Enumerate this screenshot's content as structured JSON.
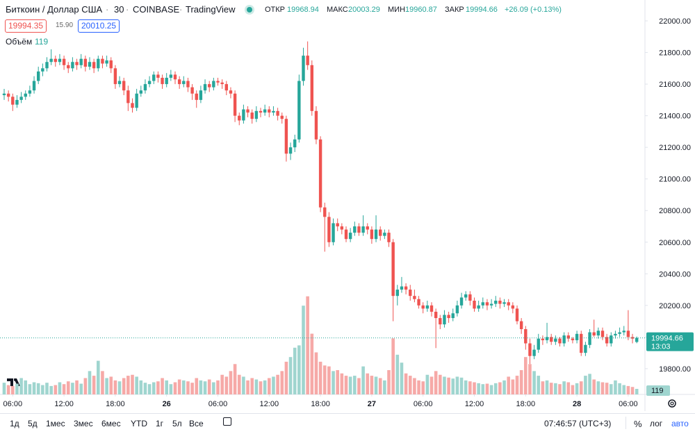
{
  "header": {
    "symbol": "Биткоин / Доллар США",
    "interval": "30",
    "exchange": "COINBASE",
    "source": "TradingView",
    "open_label": "ОТКР",
    "high_label": "МАКС",
    "low_label": "МИН",
    "close_label": "ЗАКР",
    "change": "+26.09 (+0.13%)",
    "bid": "19994.35",
    "spread": "15.90",
    "ask": "20010.25",
    "countdown": "13:03"
  },
  "toolbar": {
    "ranges": [
      "1д",
      "5д",
      "1мес",
      "3мес",
      "6мес",
      "YTD",
      "1г",
      "5л",
      "Все"
    ],
    "clock": "07:46:57 (UTC+3)",
    "percent": "%",
    "log": "лог",
    "auto": "авто"
  },
  "chart_data": {
    "type": "candlestick",
    "volume_label": "Объём",
    "up_color": "#26a69a",
    "down_color": "#ef5350",
    "volume_up_color": "#9fd5cf",
    "volume_down_color": "#f6a9a7",
    "ylim": [
      19637,
      22132
    ],
    "volume_lim": [
      0,
      2200
    ],
    "grid": false,
    "yticks": [
      {
        "value": 22000,
        "label": "22000.00"
      },
      {
        "value": 21800,
        "label": "21800.00"
      },
      {
        "value": 21600,
        "label": "21600.00"
      },
      {
        "value": 21400,
        "label": "21400.00"
      },
      {
        "value": 21200,
        "label": "21200.00"
      },
      {
        "value": 21000,
        "label": "21000.00"
      },
      {
        "value": 20800,
        "label": "20800.00"
      },
      {
        "value": 20600,
        "label": "20600.00"
      },
      {
        "value": 20400,
        "label": "20400.00"
      },
      {
        "value": 20200,
        "label": "20200.00"
      },
      {
        "value": 20000,
        "label": "20000.00"
      },
      {
        "value": 19800,
        "label": "19800.00"
      }
    ],
    "xticks": [
      {
        "value": 2,
        "label": "06:00"
      },
      {
        "value": 14,
        "label": "12:00"
      },
      {
        "value": 26,
        "label": "18:00"
      },
      {
        "value": 38,
        "label": "26"
      },
      {
        "value": 50,
        "label": "06:00"
      },
      {
        "value": 62,
        "label": "12:00"
      },
      {
        "value": 74,
        "label": "18:00"
      },
      {
        "value": 86,
        "label": "27"
      },
      {
        "value": 98,
        "label": "06:00"
      },
      {
        "value": 110,
        "label": "12:00"
      },
      {
        "value": 122,
        "label": "18:00"
      },
      {
        "value": 134,
        "label": "28"
      },
      {
        "value": 146,
        "label": "06:00"
      }
    ],
    "ohlc": [
      [
        21530,
        21570,
        21500,
        21540
      ],
      [
        21540,
        21560,
        21490,
        21520
      ],
      [
        21520,
        21540,
        21430,
        21470
      ],
      [
        21470,
        21530,
        21450,
        21500
      ],
      [
        21500,
        21550,
        21480,
        21520
      ],
      [
        21520,
        21560,
        21500,
        21540
      ],
      [
        21540,
        21590,
        21520,
        21560
      ],
      [
        21560,
        21650,
        21540,
        21620
      ],
      [
        21620,
        21710,
        21600,
        21680
      ],
      [
        21680,
        21730,
        21650,
        21700
      ],
      [
        21700,
        21770,
        21680,
        21740
      ],
      [
        21740,
        21820,
        21720,
        21760
      ],
      [
        21760,
        21780,
        21710,
        21740
      ],
      [
        21740,
        21790,
        21720,
        21760
      ],
      [
        21760,
        21780,
        21690,
        21720
      ],
      [
        21720,
        21740,
        21670,
        21700
      ],
      [
        21700,
        21770,
        21680,
        21740
      ],
      [
        21740,
        21760,
        21690,
        21720
      ],
      [
        21720,
        21790,
        21700,
        21760
      ],
      [
        21760,
        21780,
        21680,
        21710
      ],
      [
        21710,
        21770,
        21690,
        21740
      ],
      [
        21740,
        21760,
        21670,
        21700
      ],
      [
        21700,
        21780,
        21680,
        21760
      ],
      [
        21760,
        21780,
        21700,
        21730
      ],
      [
        21730,
        21780,
        21710,
        21750
      ],
      [
        21750,
        21770,
        21670,
        21700
      ],
      [
        21700,
        21720,
        21570,
        21600
      ],
      [
        21600,
        21650,
        21580,
        21620
      ],
      [
        21620,
        21640,
        21530,
        21560
      ],
      [
        21560,
        21590,
        21430,
        21480
      ],
      [
        21480,
        21510,
        21420,
        21450
      ],
      [
        21450,
        21570,
        21430,
        21540
      ],
      [
        21540,
        21590,
        21520,
        21560
      ],
      [
        21560,
        21630,
        21540,
        21600
      ],
      [
        21600,
        21650,
        21580,
        21620
      ],
      [
        21620,
        21680,
        21600,
        21660
      ],
      [
        21660,
        21680,
        21610,
        21640
      ],
      [
        21640,
        21660,
        21570,
        21600
      ],
      [
        21600,
        21670,
        21580,
        21640
      ],
      [
        21640,
        21690,
        21620,
        21660
      ],
      [
        21660,
        21680,
        21600,
        21630
      ],
      [
        21630,
        21650,
        21570,
        21600
      ],
      [
        21600,
        21650,
        21580,
        21620
      ],
      [
        21620,
        21640,
        21550,
        21580
      ],
      [
        21580,
        21600,
        21500,
        21540
      ],
      [
        21540,
        21560,
        21450,
        21500
      ],
      [
        21500,
        21590,
        21480,
        21560
      ],
      [
        21560,
        21630,
        21540,
        21600
      ],
      [
        21600,
        21620,
        21550,
        21580
      ],
      [
        21580,
        21640,
        21560,
        21620
      ],
      [
        21620,
        21640,
        21590,
        21610
      ],
      [
        21610,
        21630,
        21570,
        21600
      ],
      [
        21600,
        21620,
        21530,
        21560
      ],
      [
        21560,
        21580,
        21510,
        21540
      ],
      [
        21540,
        21560,
        21360,
        21400
      ],
      [
        21400,
        21420,
        21340,
        21370
      ],
      [
        21370,
        21470,
        21350,
        21440
      ],
      [
        21440,
        21460,
        21390,
        21420
      ],
      [
        21420,
        21440,
        21350,
        21380
      ],
      [
        21380,
        21460,
        21360,
        21430
      ],
      [
        21430,
        21450,
        21390,
        21420
      ],
      [
        21420,
        21470,
        21400,
        21440
      ],
      [
        21440,
        21460,
        21390,
        21420
      ],
      [
        21420,
        21460,
        21400,
        21430
      ],
      [
        21430,
        21450,
        21370,
        21400
      ],
      [
        21400,
        21420,
        21350,
        21380
      ],
      [
        21380,
        21400,
        21110,
        21160
      ],
      [
        21160,
        21230,
        21120,
        21200
      ],
      [
        21200,
        21280,
        21170,
        21250
      ],
      [
        21250,
        21660,
        21230,
        21620
      ],
      [
        21620,
        21830,
        21590,
        21780
      ],
      [
        21780,
        21870,
        21690,
        21720
      ],
      [
        21720,
        21750,
        21400,
        21430
      ],
      [
        21430,
        21460,
        21220,
        21250
      ],
      [
        21250,
        21270,
        20790,
        20820
      ],
      [
        20820,
        20850,
        20540,
        20760
      ],
      [
        20760,
        20790,
        20570,
        20600
      ],
      [
        20600,
        20750,
        20580,
        20720
      ],
      [
        20720,
        20750,
        20670,
        20700
      ],
      [
        20700,
        20720,
        20650,
        20680
      ],
      [
        20680,
        20700,
        20600,
        20620
      ],
      [
        20620,
        20690,
        20600,
        20660
      ],
      [
        20660,
        20730,
        20640,
        20700
      ],
      [
        20700,
        20720,
        20640,
        20660
      ],
      [
        20660,
        20770,
        20640,
        20700
      ],
      [
        20700,
        20720,
        20650,
        20680
      ],
      [
        20680,
        20700,
        20590,
        20620
      ],
      [
        20620,
        20770,
        20600,
        20680
      ],
      [
        20680,
        20700,
        20610,
        20640
      ],
      [
        20640,
        20680,
        20620,
        20660
      ],
      [
        20660,
        20680,
        20570,
        20600
      ],
      [
        20600,
        20620,
        20100,
        20260
      ],
      [
        20260,
        20330,
        20200,
        20300
      ],
      [
        20300,
        20380,
        20280,
        20320
      ],
      [
        20320,
        20340,
        20270,
        20300
      ],
      [
        20300,
        20330,
        20230,
        20260
      ],
      [
        20260,
        20300,
        20220,
        20240
      ],
      [
        20240,
        20260,
        20180,
        20200
      ],
      [
        20200,
        20220,
        20150,
        20180
      ],
      [
        20180,
        20230,
        20160,
        20200
      ],
      [
        20200,
        20220,
        20130,
        20160
      ],
      [
        20160,
        20180,
        19930,
        20120
      ],
      [
        20120,
        20140,
        20050,
        20080
      ],
      [
        20080,
        20170,
        20060,
        20140
      ],
      [
        20140,
        20160,
        20090,
        20120
      ],
      [
        20120,
        20180,
        20100,
        20150
      ],
      [
        20150,
        20230,
        20130,
        20200
      ],
      [
        20200,
        20280,
        20180,
        20250
      ],
      [
        20250,
        20290,
        20230,
        20270
      ],
      [
        20270,
        20290,
        20200,
        20230
      ],
      [
        20230,
        20250,
        20160,
        20180
      ],
      [
        20180,
        20230,
        20160,
        20200
      ],
      [
        20200,
        20250,
        20180,
        20220
      ],
      [
        20220,
        20240,
        20170,
        20200
      ],
      [
        20200,
        20240,
        20180,
        20210
      ],
      [
        20210,
        20260,
        20190,
        20230
      ],
      [
        20230,
        20250,
        20180,
        20210
      ],
      [
        20210,
        20240,
        20190,
        20220
      ],
      [
        20220,
        20240,
        20170,
        20200
      ],
      [
        20200,
        20220,
        20150,
        20180
      ],
      [
        20180,
        20200,
        20080,
        20100
      ],
      [
        20100,
        20120,
        20020,
        20050
      ],
      [
        20050,
        20070,
        19920,
        19960
      ],
      [
        19960,
        19990,
        19830,
        19880
      ],
      [
        19880,
        19950,
        19860,
        19920
      ],
      [
        19920,
        20020,
        19900,
        19990
      ],
      [
        19990,
        20010,
        19950,
        19980
      ],
      [
        19980,
        20090,
        19960,
        20000
      ],
      [
        20000,
        20020,
        19950,
        19970
      ],
      [
        19970,
        20010,
        19950,
        19990
      ],
      [
        19990,
        20000,
        19940,
        19960
      ],
      [
        19960,
        20030,
        19940,
        20010
      ],
      [
        20010,
        20030,
        19970,
        19990
      ],
      [
        19990,
        20000,
        19960,
        19980
      ],
      [
        19980,
        20040,
        19960,
        20020
      ],
      [
        20020,
        20040,
        19880,
        19900
      ],
      [
        19900,
        19970,
        19880,
        19950
      ],
      [
        19950,
        20050,
        19930,
        20030
      ],
      [
        20030,
        20110,
        20000,
        20010
      ],
      [
        20010,
        20060,
        19990,
        20040
      ],
      [
        20040,
        20060,
        19980,
        20000
      ],
      [
        20000,
        20020,
        19940,
        19960
      ],
      [
        19960,
        20030,
        19940,
        20010
      ],
      [
        20010,
        20040,
        19990,
        20020
      ],
      [
        20020,
        20060,
        20000,
        20030
      ],
      [
        20030,
        20070,
        20010,
        20040
      ],
      [
        20040,
        20170,
        19980,
        20000
      ],
      [
        20000,
        20020,
        19960,
        19990
      ],
      [
        19968.94,
        20003.29,
        19960.87,
        19994.66
      ]
    ],
    "volume": [
      250,
      200,
      180,
      230,
      350,
      300,
      220,
      260,
      240,
      200,
      250,
      180,
      200,
      260,
      220,
      280,
      250,
      300,
      230,
      350,
      500,
      400,
      720,
      500,
      350,
      380,
      300,
      280,
      350,
      400,
      420,
      380,
      300,
      250,
      220,
      260,
      280,
      350,
      300,
      220,
      260,
      320,
      300,
      280,
      250,
      350,
      300,
      280,
      320,
      260,
      300,
      420,
      380,
      500,
      650,
      420,
      380,
      300,
      350,
      320,
      280,
      300,
      350,
      380,
      420,
      500,
      700,
      800,
      1000,
      1050,
      1900,
      2100,
      1300,
      900,
      700,
      620,
      600,
      500,
      520,
      450,
      400,
      380,
      400,
      350,
      600,
      450,
      400,
      380,
      350,
      300,
      520,
      1200,
      850,
      680,
      450,
      400,
      350,
      300,
      280,
      420,
      380,
      500,
      420,
      380,
      360,
      340,
      380,
      360,
      300,
      280,
      260,
      240,
      220,
      230,
      200,
      240,
      260,
      300,
      380,
      320,
      400,
      520,
      800,
      650,
      500,
      400,
      280,
      300,
      250,
      240,
      220,
      280,
      260,
      200,
      240,
      280,
      400,
      440,
      320,
      280,
      260,
      250,
      220,
      300,
      240,
      200,
      180,
      160,
      119
    ]
  }
}
